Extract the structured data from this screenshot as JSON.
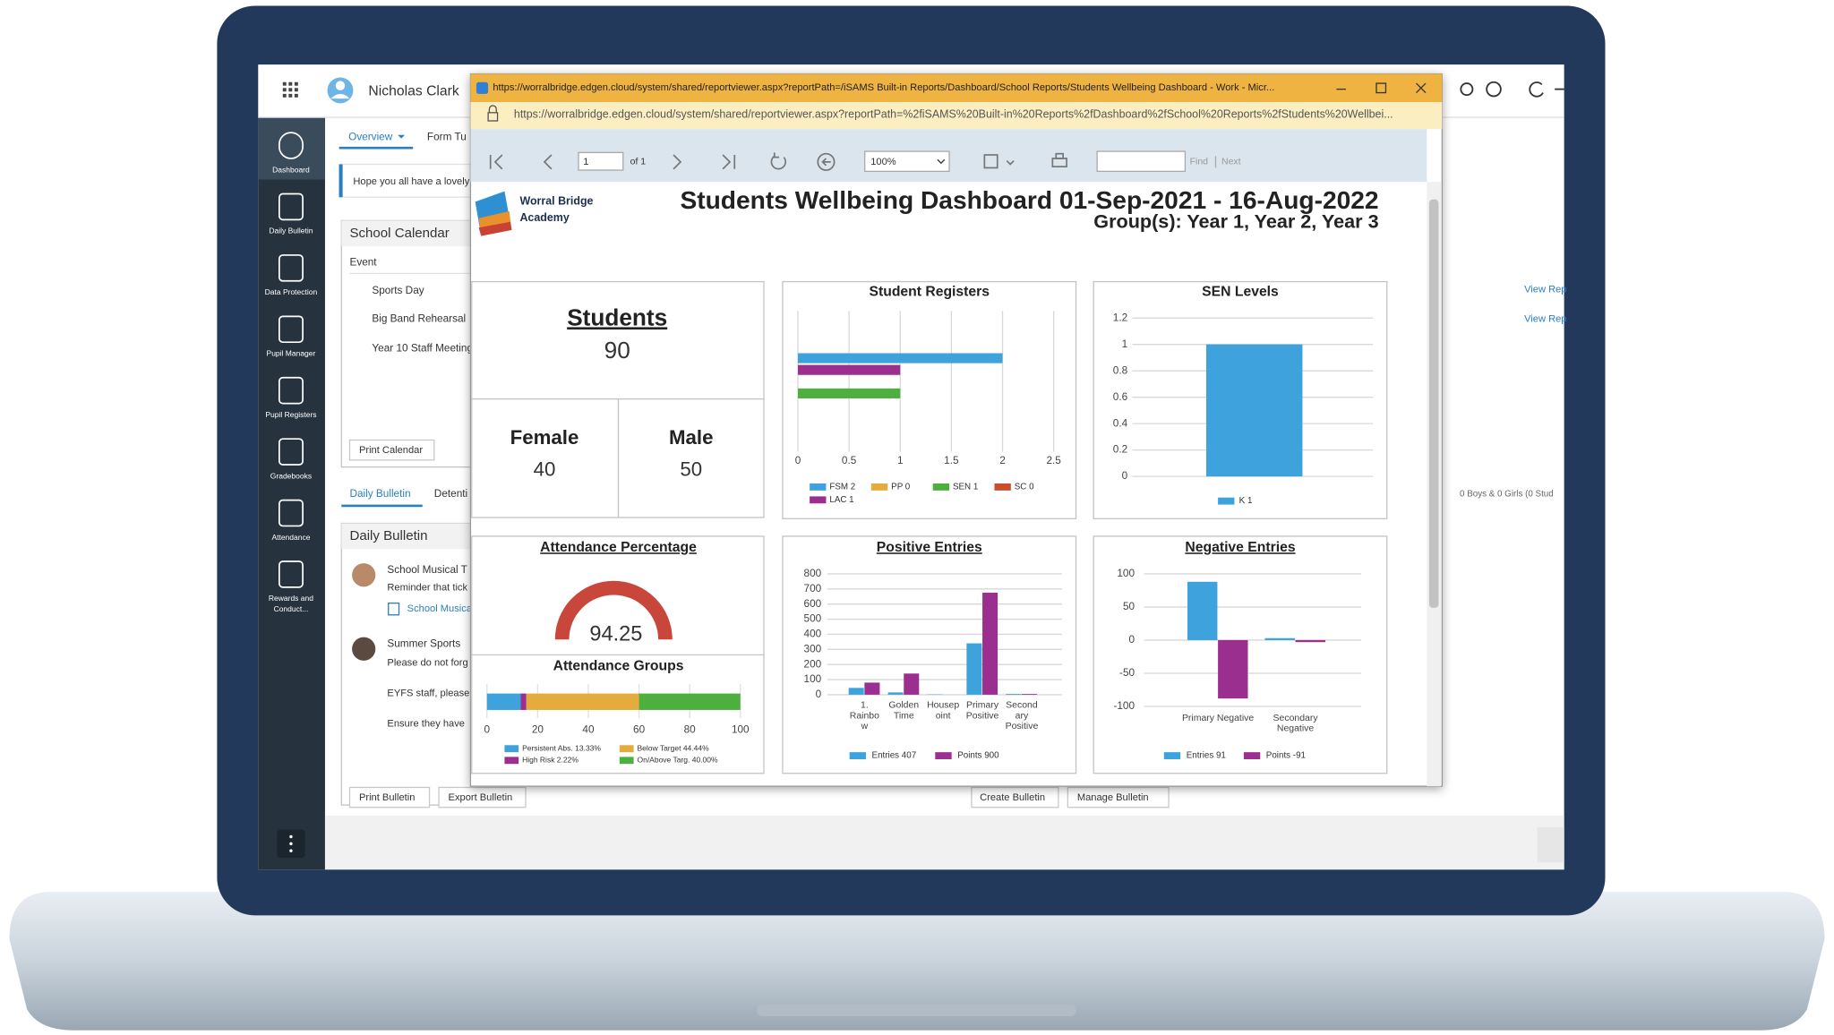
{
  "app": {
    "user": "Nicholas Clark",
    "tabs": [
      "Overview",
      "Form Tu"
    ],
    "sidebar": [
      [
        "Dashboard"
      ],
      [
        "Daily Bulletin"
      ],
      [
        "Data Protection"
      ],
      [
        "Pupil Manager"
      ],
      [
        "Pupil Registers"
      ],
      [
        "Gradebooks"
      ],
      [
        "Attendance"
      ],
      [
        "Rewards and",
        "Conduct..."
      ]
    ],
    "notice": "Hope you all have a lovely",
    "calendar": {
      "title": "School Calendar",
      "header": "Event",
      "events": [
        "Sports Day",
        "Big Band Rehearsal",
        "Year 10 Staff Meeting"
      ],
      "button": "Print Calendar"
    },
    "bulletin": {
      "tabs": [
        "Daily Bulletin",
        "Detenti"
      ],
      "title": "Daily Bulletin",
      "items": [
        {
          "title": "School Musical T",
          "lines": [
            "Reminder that tick"
          ],
          "link": "School Musica"
        },
        {
          "title": "Summer Sports",
          "lines": [
            "Please do not forg",
            "EYFS staff, please",
            "Ensure they have"
          ]
        }
      ],
      "buttons": [
        "Print Bulletin",
        "Export Bulletin",
        "Create Bulletin",
        "Manage Bulletin"
      ]
    },
    "right": {
      "links": [
        "View Rep",
        "View Rep"
      ],
      "summary": "0 Boys & 0 Girls (0 Stud"
    }
  },
  "window": {
    "title": "https://worralbridge.edgen.cloud/system/shared/reportviewer.aspx?reportPath=/iSAMS Built-in Reports/Dashboard/School Reports/Students Wellbeing Dashboard - Work - Micr...",
    "address": "https://worralbridge.edgen.cloud/system/shared/reportviewer.aspx?reportPath=%2fiSAMS%20Built-in%20Reports%2fDashboard%2fSchool%20Reports%2fStudents%20Wellbei...",
    "toolbar": {
      "page": "1",
      "of": "of 1",
      "zoom": "100%",
      "find": "Find",
      "next": "Next"
    }
  },
  "report": {
    "logo": [
      "Worral Bridge",
      "Academy"
    ],
    "title": "Students Wellbeing Dashboard 01-Sep-2021 - 16-Aug-2022",
    "groups": "Group(s): Year 1, Year 2, Year 3",
    "students": {
      "label": "Students",
      "total": 90,
      "female_label": "Female",
      "female": 40,
      "male_label": "Male",
      "male": 50
    },
    "registers": {
      "title": "Student Registers",
      "type": "bar",
      "orientation": "horizontal",
      "categories": [
        "FSM 2",
        "PP 0",
        "SEN 1",
        "SC 0",
        "LAC 1"
      ],
      "values": [
        2,
        0,
        1,
        0,
        1
      ],
      "colors": [
        "#3ea3dc",
        "#e3ac3c",
        "#4caf3e",
        "#c8502e",
        "#9b2f8f"
      ],
      "xlim": [
        0,
        2.5
      ],
      "xticks": [
        0,
        0.5,
        1,
        1.5,
        2,
        2.5
      ],
      "grid": true
    },
    "sen": {
      "title": "SEN Levels",
      "type": "bar",
      "categories": [
        "K 1"
      ],
      "values": [
        1
      ],
      "color": "#3ea3dc",
      "ylim": [
        0,
        1.2
      ],
      "yticks": [
        0,
        0.2,
        0.4,
        0.6,
        0.8,
        1,
        1.2
      ],
      "grid": true
    },
    "attendance": {
      "title": "Attendance Percentage",
      "value": 94.25
    },
    "groups_chart": {
      "title": "Attendance Groups",
      "type": "stacked-bar",
      "segments": [
        {
          "label": "Persistent Abs. 13.33%",
          "value": 13.33,
          "color": "#3ea3dc"
        },
        {
          "label": "High Risk 2.22%",
          "value": 2.22,
          "color": "#9b2f8f"
        },
        {
          "label": "Below Target 44.44%",
          "value": 44.44,
          "color": "#e3ac3c"
        },
        {
          "label": "On/Above Targ. 40.00%",
          "value": 40.0,
          "color": "#4caf3e"
        }
      ],
      "xlim": [
        0,
        100
      ],
      "xticks": [
        0,
        20,
        40,
        60,
        80,
        100
      ],
      "grid": true
    },
    "positive": {
      "title": "Positive Entries",
      "type": "bar",
      "categories": [
        [
          "1.",
          "Rainbo",
          "w"
        ],
        [
          "Golden",
          "Time"
        ],
        [
          "Housep",
          "oint"
        ],
        [
          "Primary",
          "Positive"
        ],
        [
          "Second",
          "ary",
          "Positive"
        ]
      ],
      "series": [
        {
          "name": "Entries 407",
          "color": "#3ea3dc",
          "values": [
            45,
            15,
            2,
            340,
            5
          ]
        },
        {
          "name": "Points 900",
          "color": "#9b2f8f",
          "values": [
            80,
            140,
            0,
            675,
            5
          ]
        }
      ],
      "ylim": [
        0,
        800
      ],
      "yticks": [
        0,
        100,
        200,
        300,
        400,
        500,
        600,
        700,
        800
      ],
      "grid": true
    },
    "negative": {
      "title": "Negative Entries",
      "type": "bar",
      "categories": [
        [
          "Primary Negative"
        ],
        [
          "Secondary",
          "Negative"
        ]
      ],
      "series": [
        {
          "name": "Entries 91",
          "color": "#3ea3dc",
          "values": [
            88,
            3
          ]
        },
        {
          "name": "Points -91",
          "color": "#9b2f8f",
          "values": [
            -88,
            -3
          ]
        }
      ],
      "ylim": [
        -100,
        100
      ],
      "yticks": [
        -100,
        -50,
        0,
        50,
        100
      ],
      "grid": true
    }
  }
}
